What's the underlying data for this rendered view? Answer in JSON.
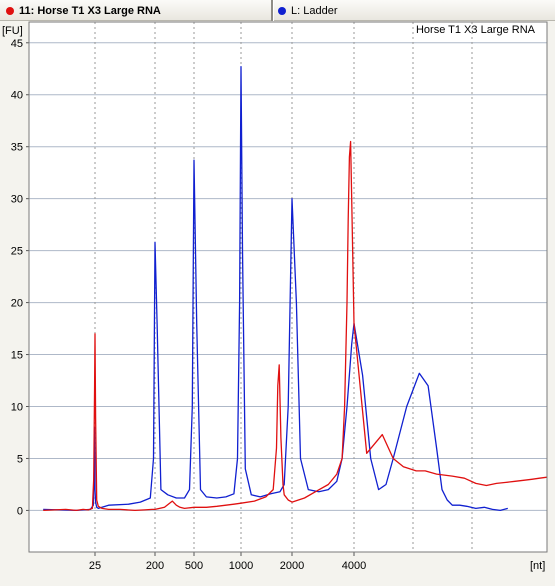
{
  "legend": [
    {
      "label": "11: Horse T1 X3 Large RNA",
      "color": "#e01010",
      "selected": true
    },
    {
      "label": "L: Ladder",
      "color": "#1020d0",
      "selected": false
    }
  ],
  "chart_data": {
    "type": "line",
    "title": "Horse T1 X3 Large RNA",
    "ylabel": "[FU]",
    "xlabel": "[nt]",
    "ylim": [
      -4,
      47
    ],
    "y_ticks": [
      0,
      5,
      10,
      15,
      20,
      25,
      30,
      35,
      40,
      45
    ],
    "x_axis": {
      "scale": "nonlinear",
      "ticks": [
        {
          "value": 25,
          "label": "25"
        },
        {
          "value": 200,
          "label": "200"
        },
        {
          "value": 500,
          "label": "500"
        },
        {
          "value": 1000,
          "label": "1000"
        },
        {
          "value": 2000,
          "label": "2000"
        },
        {
          "value": 4000,
          "label": "4000"
        }
      ]
    },
    "grid": true,
    "legend_position": "top",
    "series": [
      {
        "name": "11: Horse T1 X3 Large RNA",
        "color": "#e01010",
        "x": [
          2,
          6,
          10,
          14,
          18,
          22,
          23.5,
          24.5,
          25,
          25.5,
          26.5,
          28,
          32,
          40,
          60,
          100,
          140,
          180,
          200,
          250,
          300,
          330,
          360,
          400,
          500,
          600,
          700,
          800,
          900,
          1000,
          1200,
          1400,
          1550,
          1620,
          1650,
          1680,
          1720,
          1770,
          1800,
          1900,
          2000,
          2300,
          2600,
          3000,
          3300,
          3500,
          3600,
          3700,
          3750,
          3800,
          3850,
          3900,
          4000,
          4300,
          4700,
          5000,
          5300,
          5700,
          6000,
          6400,
          7000,
          7500,
          8000,
          8500,
          9000,
          9500,
          10000,
          10500,
          11000,
          11500,
          12000
        ],
        "y": [
          0,
          0.1,
          0,
          0.1,
          0.05,
          0.2,
          3,
          12,
          17,
          9,
          1,
          0.4,
          0.2,
          0.1,
          0.1,
          0,
          0.05,
          0.1,
          0.1,
          0.3,
          0.9,
          0.5,
          0.3,
          0.2,
          0.3,
          0.3,
          0.4,
          0.5,
          0.6,
          0.7,
          0.9,
          1.3,
          2,
          6,
          12,
          14,
          7,
          2.5,
          1.5,
          1,
          0.8,
          1.2,
          1.8,
          2.5,
          3.5,
          5,
          10,
          20,
          28,
          34,
          35.5,
          30,
          18,
          5.5,
          7.3,
          5,
          4.2,
          3.8,
          3.8,
          3.5,
          3.3,
          3.1,
          2.6,
          2.4,
          2.6,
          2.7,
          2.8,
          2.9,
          3,
          3.1,
          3.2
        ]
      },
      {
        "name": "L: Ladder",
        "color": "#1020d0",
        "x": [
          2,
          10,
          20,
          23,
          24,
          24.5,
          25,
          25.5,
          26.5,
          28,
          40,
          80,
          120,
          170,
          190,
          200,
          210,
          230,
          270,
          330,
          400,
          450,
          480,
          500,
          520,
          550,
          600,
          700,
          800,
          900,
          950,
          980,
          1000,
          1020,
          1060,
          1150,
          1300,
          1500,
          1700,
          1800,
          1900,
          2000,
          2100,
          2200,
          2400,
          2700,
          3000,
          3300,
          3500,
          3700,
          3900,
          4000,
          4200,
          4400,
          4600,
          4800,
          5000,
          5400,
          5800,
          6100,
          6400,
          6600,
          6800,
          7000,
          7300,
          7600,
          8000,
          8400,
          8800,
          9200,
          9600
        ],
        "y": [
          0.1,
          0,
          0.1,
          0.5,
          4,
          8,
          2,
          0.8,
          0.3,
          0.2,
          0.5,
          0.6,
          0.8,
          1.2,
          5,
          25.8,
          18,
          2,
          1.5,
          1.2,
          1.2,
          2,
          10,
          33.7,
          18,
          2,
          1.3,
          1.2,
          1.3,
          1.6,
          5,
          20,
          42.7,
          25,
          4,
          1.5,
          1.3,
          1.6,
          1.8,
          2.5,
          10,
          30,
          20,
          5,
          2,
          1.8,
          2,
          2.8,
          5,
          10,
          16,
          18,
          13,
          5,
          2,
          2.5,
          5,
          10,
          13.2,
          12,
          6,
          2,
          1,
          0.5,
          0.5,
          0.4,
          0.2,
          0.3,
          0.1,
          0,
          0.2
        ]
      }
    ]
  }
}
